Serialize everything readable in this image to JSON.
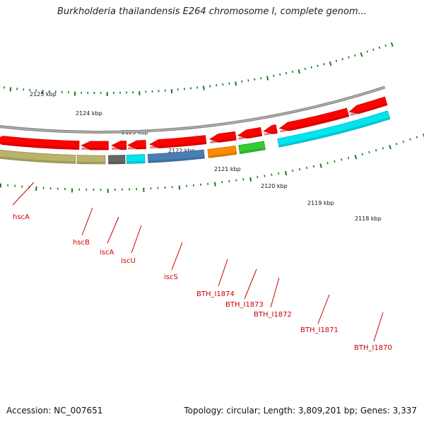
{
  "title": "Burkholderia thailandensis E264 chromosome I, complete genom...",
  "footer": {
    "accession": "Accession: NC_007651",
    "summary": "Topology: circular; Length: 3,809,201 bp; Genes: 3,337"
  },
  "ruler": {
    "labels": [
      "2125 kbp",
      "2124 kbp",
      "2123 kbp",
      "2122 kbp",
      "2121 kbp",
      "2120 kbp",
      "2119 kbp",
      "2118 kbp"
    ],
    "tick_color": "#1a7a1a"
  },
  "backbone_color": "#888888",
  "genes": [
    {
      "label": "hscA",
      "color": "#ff0000",
      "strand": "plus"
    },
    {
      "label": "hscA",
      "color": "#b8b46a",
      "strand": "minus"
    },
    {
      "label": "hscB",
      "color": "#ff0000",
      "strand": "plus"
    },
    {
      "label": "hscB",
      "color": "#b8b46a",
      "strand": "minus"
    },
    {
      "label": "iscA",
      "color": "#ff0000",
      "strand": "plus"
    },
    {
      "label": "iscA",
      "color": "#666666",
      "strand": "minus"
    },
    {
      "label": "iscU",
      "color": "#ff0000",
      "strand": "plus"
    },
    {
      "label": "iscU",
      "color": "#00e5ee",
      "strand": "minus"
    },
    {
      "label": "iscS",
      "color": "#ff0000",
      "strand": "plus"
    },
    {
      "label": "iscS",
      "color": "#4a7fb5",
      "strand": "minus"
    },
    {
      "label": "BTH_I1874",
      "color": "#ff0000",
      "strand": "plus"
    },
    {
      "label": "BTH_I1874",
      "color": "#ff8c00",
      "strand": "minus"
    },
    {
      "label": "BTH_I1873",
      "color": "#ff0000",
      "strand": "plus"
    },
    {
      "label": "BTH_I1873",
      "color": "#33cc33",
      "strand": "minus"
    },
    {
      "label": "BTH_I1872",
      "color": "#ff0000",
      "strand": "plus"
    },
    {
      "label": "BTH_I1871",
      "color": "#ff0000",
      "strand": "plus"
    },
    {
      "label": "BTH_I1871",
      "color": "#00e5ee",
      "strand": "minus"
    },
    {
      "label": "BTH_I1870",
      "color": "#ff0000",
      "strand": "plus"
    }
  ],
  "callouts": [
    "hscA",
    "hscB",
    "iscA",
    "iscU",
    "iscS",
    "BTH_I1874",
    "BTH_I1873",
    "BTH_I1872",
    "BTH_I1871",
    "BTH_I1870"
  ]
}
